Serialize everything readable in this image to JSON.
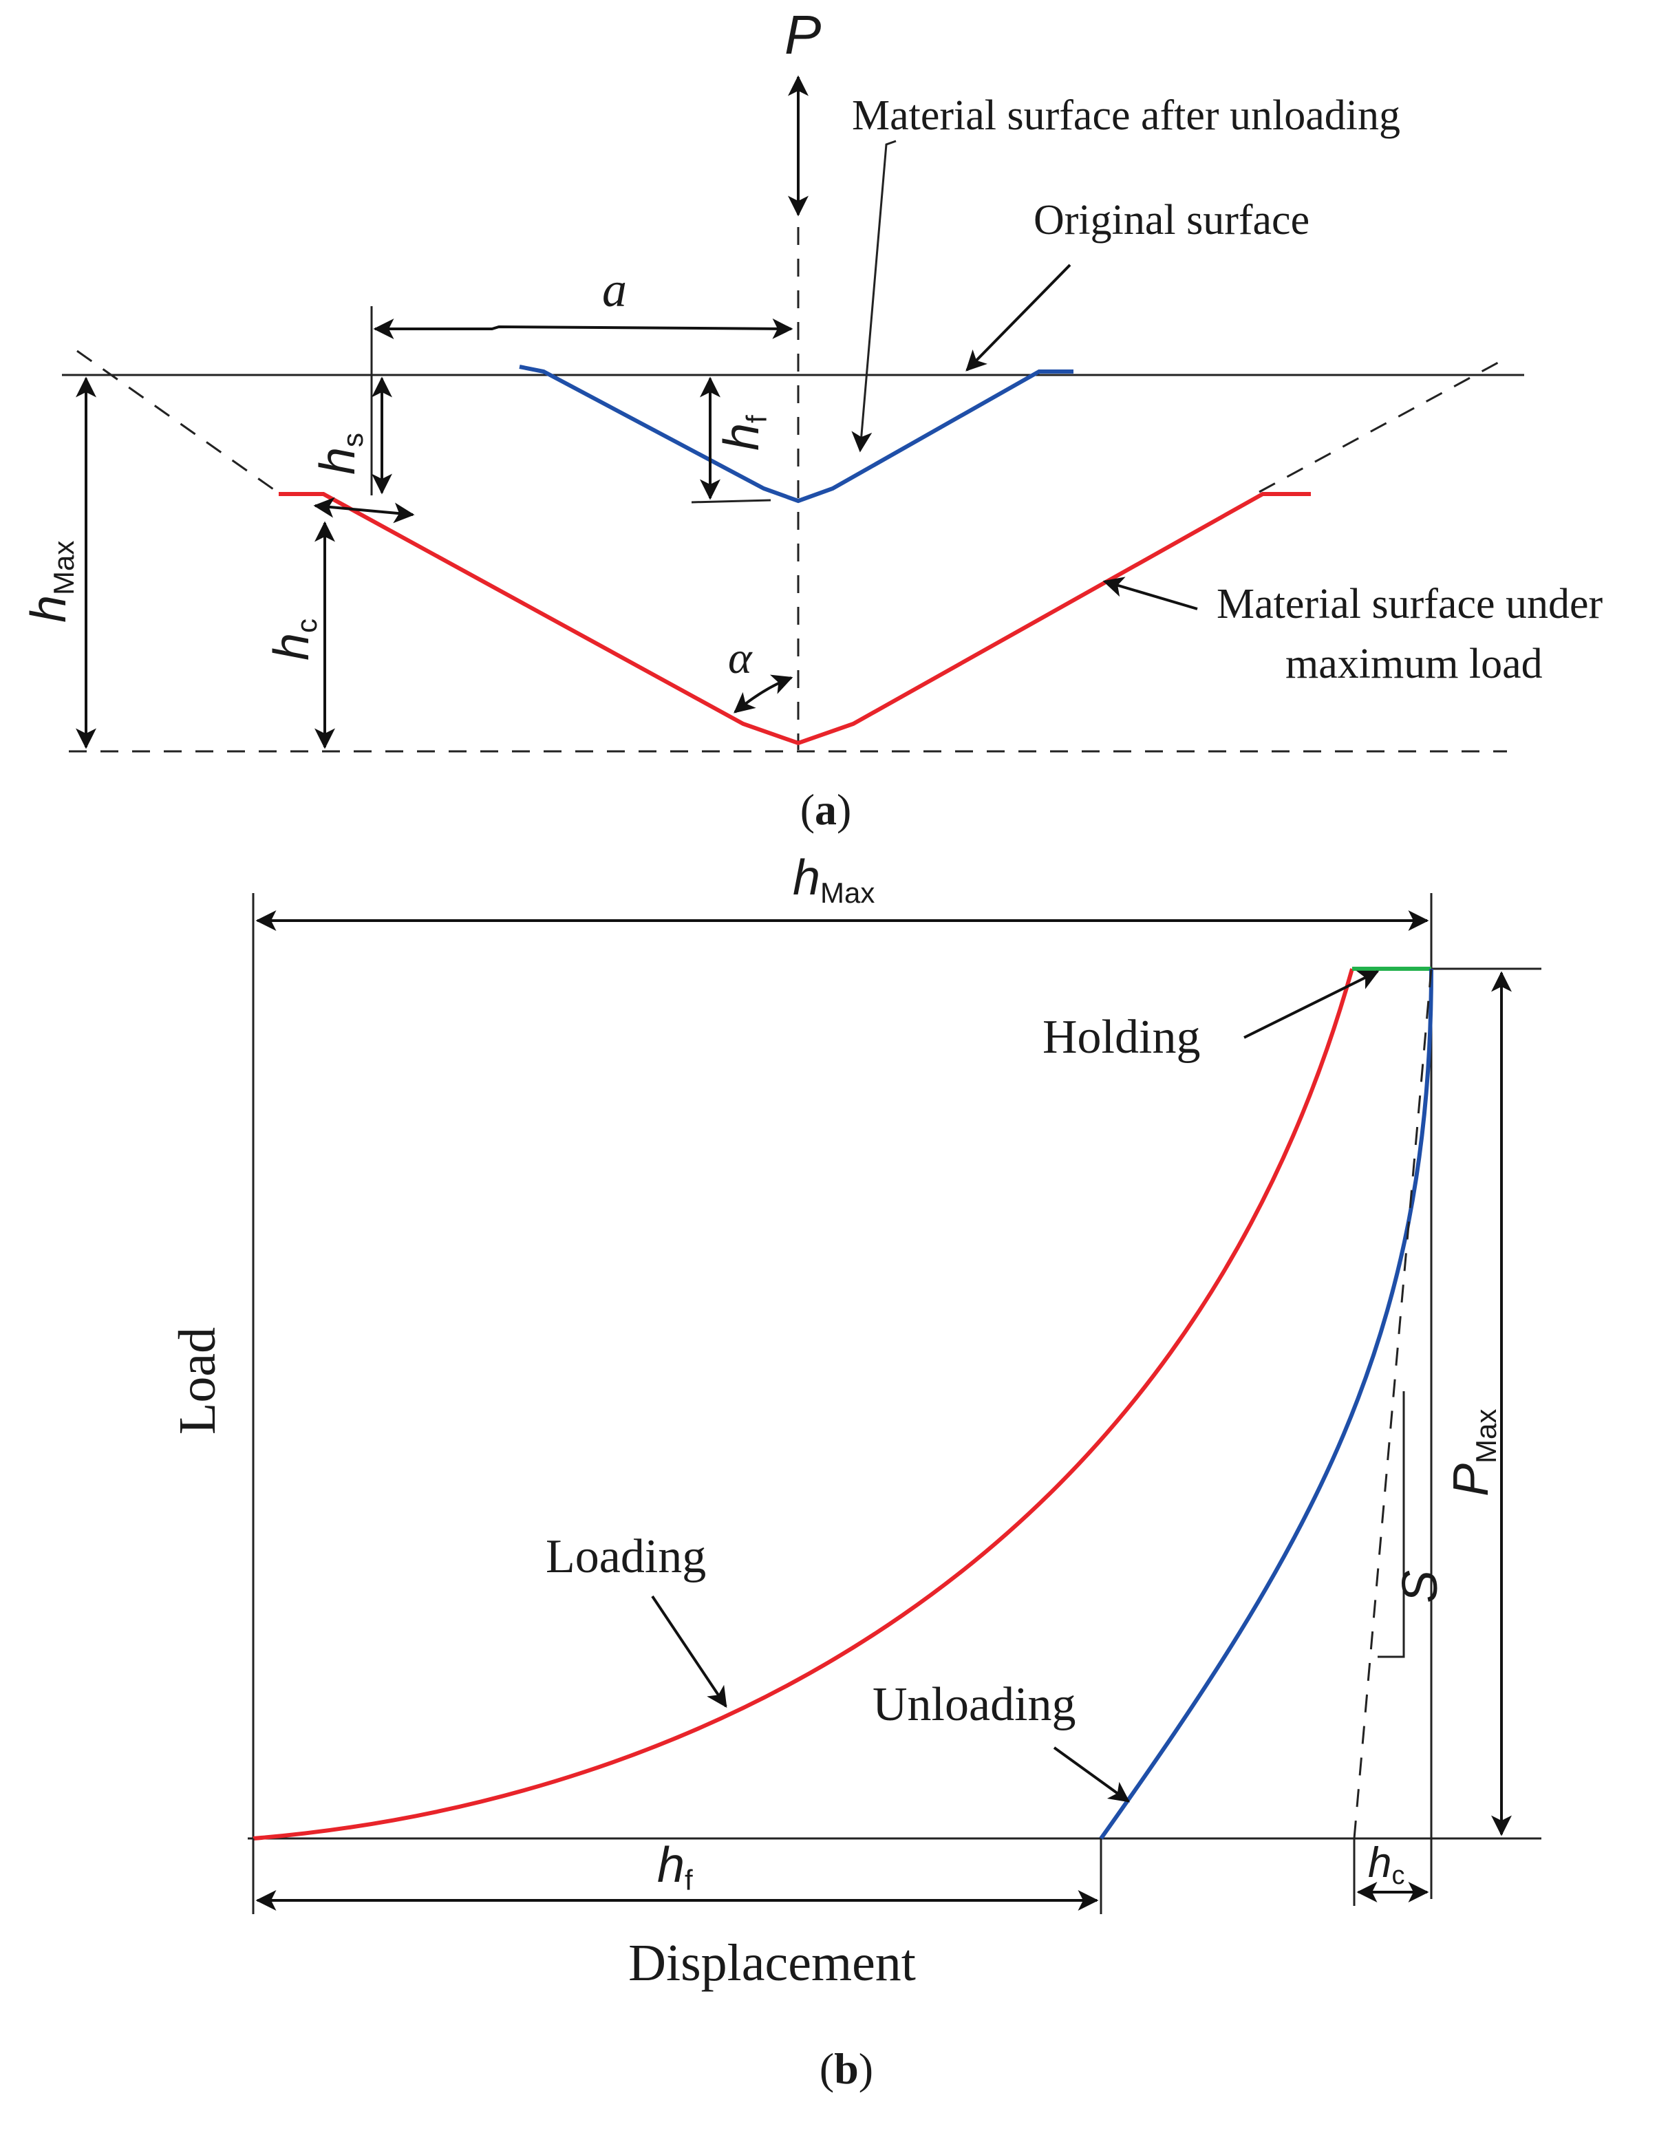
{
  "panel_a": {
    "symbol_load": "P",
    "label_after_unloading": "Material surface after unloading",
    "label_original": "Original surface",
    "label_under_max_1": "Material surface under",
    "label_under_max_2": "maximum load",
    "dim_a": "a",
    "dim_h_s": "h",
    "dim_h_s_sub": "s",
    "dim_h_f": "h",
    "dim_h_f_sub": "f",
    "dim_h_max": "h",
    "dim_h_max_sub": "Max",
    "dim_h_c": "h",
    "dim_h_c_sub": "c",
    "angle": "α",
    "caption_open": "(",
    "caption_letter": "a",
    "caption_close": ")"
  },
  "panel_b": {
    "dim_h_max": "h",
    "dim_h_max_sub": "Max",
    "label_holding": "Holding",
    "label_loading": "Loading",
    "label_unloading": "Unloading",
    "dim_p_max": "P",
    "dim_p_max_sub": "Max",
    "label_s": "S",
    "dim_h_f": "h",
    "dim_h_f_sub": "f",
    "dim_h_c": "h",
    "dim_h_c_sub": "c",
    "ylabel": "Load",
    "xlabel": "Displacement",
    "caption_open": "(",
    "caption_letter": "b",
    "caption_close": ")"
  },
  "colors": {
    "loading": "#e8242a",
    "unloading": "#1f4fa8",
    "holding": "#22b14c"
  }
}
